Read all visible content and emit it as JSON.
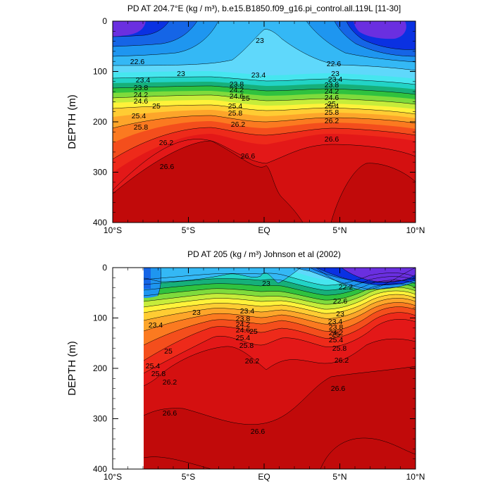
{
  "chart_data": [
    {
      "type": "contour",
      "title": "PD AT 204.7°E (kg / m³), b.e15.B1850.f09_g16.pi_control.all.119L [11-30]",
      "ylabel": "DEPTH (m)",
      "xlim": [
        -10,
        10
      ],
      "ylim": [
        400,
        0
      ],
      "x_tick_labels": [
        "10°S",
        "5°S",
        "EQ",
        "5°N",
        "10°N"
      ],
      "y_tick_labels": [
        "0",
        "100",
        "200",
        "300",
        "400"
      ],
      "contour_labels": [
        {
          "text": "23",
          "lat": -0.4,
          "depth": 40
        },
        {
          "text": "22.6",
          "lat": -8.8,
          "depth": 81
        },
        {
          "text": "23",
          "lat": -5.5,
          "depth": 104
        },
        {
          "text": "23.4",
          "lat": -9.2,
          "depth": 116
        },
        {
          "text": "23.8",
          "lat": -9.2,
          "depth": 126
        },
        {
          "text": "24.2",
          "lat": -9.2,
          "depth": 137
        },
        {
          "text": "24.6",
          "lat": -9.2,
          "depth": 152
        },
        {
          "text": "25",
          "lat": -7.0,
          "depth": 167
        },
        {
          "text": "25.4",
          "lat": -8.8,
          "depth": 187
        },
        {
          "text": "25.8",
          "lat": -8.8,
          "depth": 211
        },
        {
          "text": "26.2",
          "lat": -6.6,
          "depth": 245
        },
        {
          "text": "26.6",
          "lat": -6.6,
          "depth": 291
        },
        {
          "text": "23.4",
          "lat": -1.3,
          "depth": 111
        },
        {
          "text": "23.8",
          "lat": -1.8,
          "depth": 124
        },
        {
          "text": "24.2",
          "lat": -1.8,
          "depth": 135
        },
        {
          "text": "24.6",
          "lat": -1.8,
          "depth": 147
        },
        {
          "text": "25",
          "lat": -1.2,
          "depth": 151
        },
        {
          "text": "25.4",
          "lat": -2.0,
          "depth": 167
        },
        {
          "text": "25.8",
          "lat": -2.0,
          "depth": 181
        },
        {
          "text": "26.2",
          "lat": -1.7,
          "depth": 205
        },
        {
          "text": "26.6",
          "lat": -1.2,
          "depth": 272
        },
        {
          "text": "22.6",
          "lat": 4.5,
          "depth": 86
        },
        {
          "text": "23",
          "lat": 4.7,
          "depth": 104
        },
        {
          "text": "23.4",
          "lat": 4.7,
          "depth": 114
        },
        {
          "text": "23.8",
          "lat": 4.5,
          "depth": 126
        },
        {
          "text": "24.2",
          "lat": 4.5,
          "depth": 139
        },
        {
          "text": "24.6",
          "lat": 4.5,
          "depth": 152
        },
        {
          "text": "25",
          "lat": 4.5,
          "depth": 165
        },
        {
          "text": "25.4",
          "lat": 4.5,
          "depth": 169
        },
        {
          "text": "25.8",
          "lat": 4.5,
          "depth": 181
        },
        {
          "text": "26.2",
          "lat": 4.5,
          "depth": 198
        },
        {
          "text": "26.6",
          "lat": 4.5,
          "depth": 235
        }
      ]
    },
    {
      "type": "contour",
      "title": "PD AT 205 (kg / m³) Johnson et al (2002)",
      "ylabel": "DEPTH (m)",
      "xlim": [
        -10,
        10
      ],
      "ylim": [
        400,
        0
      ],
      "data_xlim": [
        -8,
        10
      ],
      "x_tick_labels": [
        "10°S",
        "5°S",
        "EQ",
        "5°N",
        "10°N"
      ],
      "y_tick_labels": [
        "0",
        "100",
        "200",
        "300",
        "400"
      ],
      "contour_labels": [
        {
          "text": "23",
          "lat": 0.1,
          "depth": 32
        },
        {
          "text": "22.2",
          "lat": 5.2,
          "depth": 38
        },
        {
          "text": "22.6",
          "lat": 4.8,
          "depth": 67
        },
        {
          "text": "23",
          "lat": -4.5,
          "depth": 90
        },
        {
          "text": "23",
          "lat": 4.8,
          "depth": 92
        },
        {
          "text": "23.4",
          "lat": -7.3,
          "depth": 114
        },
        {
          "text": "23.4",
          "lat": -1.1,
          "depth": 84
        },
        {
          "text": "23.8",
          "lat": -1.4,
          "depth": 100
        },
        {
          "text": "24.2",
          "lat": -1.4,
          "depth": 111
        },
        {
          "text": "24.6",
          "lat": -1.4,
          "depth": 123
        },
        {
          "text": "25",
          "lat": -0.7,
          "depth": 125
        },
        {
          "text": "25.4",
          "lat": -1.4,
          "depth": 138
        },
        {
          "text": "25.8",
          "lat": -1.2,
          "depth": 152
        },
        {
          "text": "23.4",
          "lat": 4.5,
          "depth": 107
        },
        {
          "text": "23.8",
          "lat": 4.6,
          "depth": 119
        },
        {
          "text": "24.2",
          "lat": 4.6,
          "depth": 130
        },
        {
          "text": "25",
          "lat": 4.6,
          "depth": 133
        },
        {
          "text": "25.4",
          "lat": 4.6,
          "depth": 144
        },
        {
          "text": "25.8",
          "lat": 4.8,
          "depth": 160
        },
        {
          "text": "26.2",
          "lat": 5.0,
          "depth": 184
        },
        {
          "text": "26.2",
          "lat": -1.0,
          "depth": 186
        },
        {
          "text": "25",
          "lat": -6.3,
          "depth": 168
        },
        {
          "text": "25.4",
          "lat": -7.3,
          "depth": 197
        },
        {
          "text": "25.8",
          "lat": -7.1,
          "depth": 212
        },
        {
          "text": "26.2",
          "lat": -6.2,
          "depth": 228
        },
        {
          "text": "26.6",
          "lat": 4.9,
          "depth": 240
        },
        {
          "text": "26.6",
          "lat": -6.2,
          "depth": 290
        },
        {
          "text": "26.6",
          "lat": -0.5,
          "depth": 326
        }
      ]
    }
  ]
}
